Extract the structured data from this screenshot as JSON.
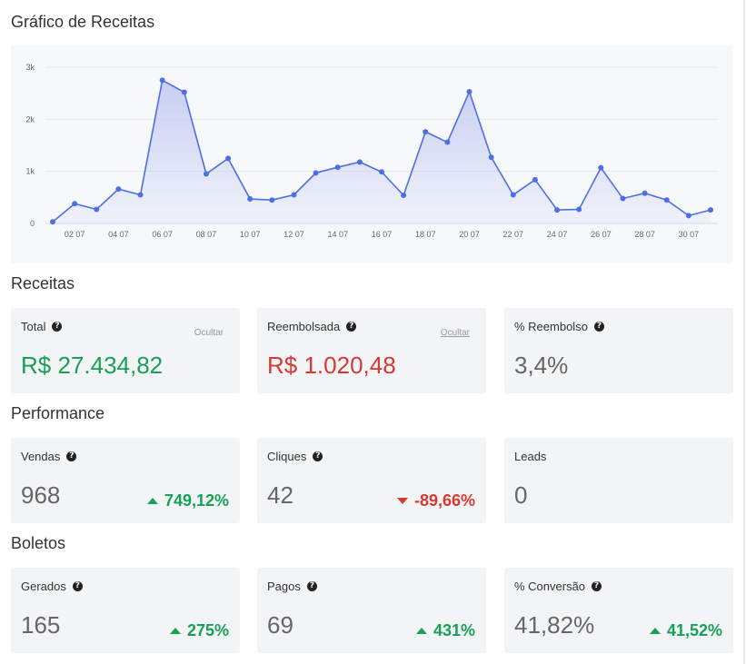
{
  "chart_title": "Gráfico de Receitas",
  "chart_data": {
    "type": "area",
    "title": "Gráfico de Receitas",
    "x": [
      "01 07",
      "02 07",
      "03 07",
      "04 07",
      "05 07",
      "06 07",
      "07 07",
      "08 07",
      "09 07",
      "10 07",
      "11 07",
      "12 07",
      "13 07",
      "14 07",
      "15 07",
      "16 07",
      "17 07",
      "18 07",
      "19 07",
      "20 07",
      "21 07",
      "22 07",
      "23 07",
      "24 07",
      "25 07",
      "26 07",
      "27 07",
      "28 07",
      "29 07",
      "30 07",
      "31 07"
    ],
    "x_tick_labels": [
      "02 07",
      "04 07",
      "06 07",
      "08 07",
      "10 07",
      "12 07",
      "14 07",
      "16 07",
      "18 07",
      "20 07",
      "22 07",
      "24 07",
      "26 07",
      "28 07",
      "30 07"
    ],
    "y_tick_labels": [
      "0",
      "1k",
      "2k",
      "3k"
    ],
    "ylim": [
      0,
      3000
    ],
    "values": [
      30,
      380,
      270,
      660,
      550,
      2750,
      2520,
      950,
      1250,
      470,
      450,
      550,
      970,
      1080,
      1180,
      990,
      540,
      1760,
      1560,
      2530,
      1270,
      550,
      840,
      260,
      270,
      1070,
      480,
      580,
      450,
      150,
      260
    ],
    "grid": true,
    "line_color": "#4f6fe0",
    "fill_color": "#c5cdf3"
  },
  "sections": {
    "receitas": "Receitas",
    "performance": "Performance",
    "boletos": "Boletos"
  },
  "cards": {
    "total": {
      "label": "Total",
      "value": "R$ 27.434,82",
      "hide": "Ocultar"
    },
    "reembolsada": {
      "label": "Reembolsada",
      "value": "R$ 1.020,48",
      "hide": "Ocultar"
    },
    "reembolso_pct": {
      "label": "% Reembolso",
      "value": "3,4%"
    },
    "vendas": {
      "label": "Vendas",
      "value": "968",
      "delta": "749,12%"
    },
    "cliques": {
      "label": "Cliques",
      "value": "42",
      "delta": "-89,66%"
    },
    "leads": {
      "label": "Leads",
      "value": "0"
    },
    "gerados": {
      "label": "Gerados",
      "value": "165",
      "delta": "275%"
    },
    "pagos": {
      "label": "Pagos",
      "value": "69",
      "delta": "431%"
    },
    "conversao": {
      "label": "% Conversão",
      "value": "41,82%",
      "delta": "41,52%"
    }
  },
  "colors": {
    "positive": "#18a058",
    "negative": "#d43a34",
    "card_bg": "#f3f4f6"
  }
}
